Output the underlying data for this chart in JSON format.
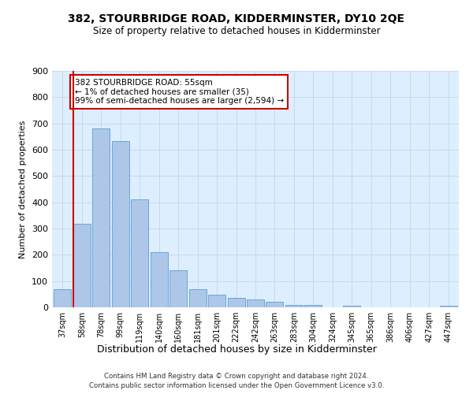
{
  "title": "382, STOURBRIDGE ROAD, KIDDERMINSTER, DY10 2QE",
  "subtitle": "Size of property relative to detached houses in Kidderminster",
  "xlabel": "Distribution of detached houses by size in Kidderminster",
  "ylabel": "Number of detached properties",
  "categories": [
    "37sqm",
    "58sqm",
    "78sqm",
    "99sqm",
    "119sqm",
    "140sqm",
    "160sqm",
    "181sqm",
    "201sqm",
    "222sqm",
    "242sqm",
    "263sqm",
    "283sqm",
    "304sqm",
    "324sqm",
    "345sqm",
    "365sqm",
    "386sqm",
    "406sqm",
    "427sqm",
    "447sqm"
  ],
  "values": [
    70,
    318,
    682,
    632,
    412,
    210,
    140,
    70,
    47,
    35,
    30,
    20,
    10,
    8,
    0,
    5,
    0,
    0,
    0,
    0,
    7
  ],
  "bar_color": "#aec6e8",
  "bar_edge_color": "#5a9fd4",
  "highlight_line_color": "#cc0000",
  "annotation_box_text": "382 STOURBRIDGE ROAD: 55sqm\n← 1% of detached houses are smaller (35)\n99% of semi-detached houses are larger (2,594) →",
  "annotation_box_color": "#cc0000",
  "ylim": [
    0,
    900
  ],
  "yticks": [
    0,
    100,
    200,
    300,
    400,
    500,
    600,
    700,
    800,
    900
  ],
  "grid_color": "#c8daea",
  "background_color": "#ddeeff",
  "footer_line1": "Contains HM Land Registry data © Crown copyright and database right 2024.",
  "footer_line2": "Contains public sector information licensed under the Open Government Licence v3.0."
}
